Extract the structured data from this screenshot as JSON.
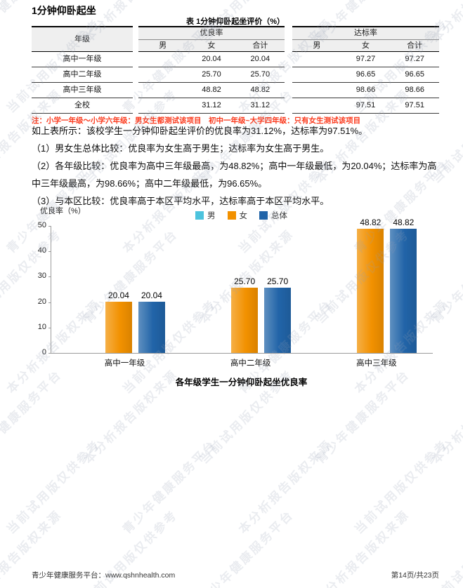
{
  "page": {
    "title": "1分钟仰卧起坐",
    "footer_left": "青少年健康服务平台：www.qshnhealth.com",
    "footer_right": "第14页/共23页"
  },
  "table": {
    "title": "表 1分钟仰卧起坐评价（%）",
    "grade_header": "年级",
    "group_headers": [
      "优良率",
      "达标率"
    ],
    "sub_headers": [
      "男",
      "女",
      "合计"
    ],
    "rows": [
      {
        "grade": "高中一年级",
        "excellent": [
          "",
          "20.04",
          "20.04"
        ],
        "pass": [
          "",
          "97.27",
          "97.27"
        ]
      },
      {
        "grade": "高中二年级",
        "excellent": [
          "",
          "25.70",
          "25.70"
        ],
        "pass": [
          "",
          "96.65",
          "96.65"
        ]
      },
      {
        "grade": "高中三年级",
        "excellent": [
          "",
          "48.82",
          "48.82"
        ],
        "pass": [
          "",
          "98.66",
          "98.66"
        ]
      },
      {
        "grade": "全校",
        "excellent": [
          "",
          "31.12",
          "31.12"
        ],
        "pass": [
          "",
          "97.51",
          "97.51"
        ]
      }
    ],
    "note": "注：小学一年级～小学六年级：男女生都测试该项目　初中一年级~大学四年级：只有女生测试该项目",
    "note_color": "#fb3a1d"
  },
  "paragraphs": [
    "如上表所示：该校学生一分钟仰卧起坐评价的优良率为31.12%，达标率为97.51%。",
    "（1）男女生总体比较：优良率为女生高于男生；达标率为女生高于男生。",
    "（2）各年级比较：优良率为高中三年级最高，为48.82%；高中一年级最低，为20.04%；达标率为高中三年级最高，为98.66%；高中二年级最低，为96.65%。",
    "（3）与本区比较：优良率高于本区平均水平，达标率高于本区平均水平。"
  ],
  "chart_data": {
    "type": "bar",
    "title": "各年级学生一分钟仰卧起坐优良率",
    "ylabel": "优良率（%）",
    "xlabel": "",
    "ylim": [
      0,
      50
    ],
    "yticks": [
      0,
      10,
      20,
      30,
      40,
      50
    ],
    "grid": false,
    "legend_position": "top",
    "categories": [
      "高中一年级",
      "高中二年级",
      "高中三年级"
    ],
    "series": [
      {
        "name": "男",
        "color": "#4cc3dd",
        "values": [
          null,
          null,
          null
        ]
      },
      {
        "name": "女",
        "color": "#f29100",
        "values": [
          20.04,
          25.7,
          48.82
        ]
      },
      {
        "name": "总体",
        "color": "#2164a8",
        "values": [
          20.04,
          25.7,
          48.82
        ]
      }
    ]
  },
  "watermark": {
    "phrases": [
      "青少年健康服务平台",
      "本分析报告版权来源",
      "当前试用版仅供参考"
    ],
    "color": "rgba(148,160,180,0.20)"
  }
}
